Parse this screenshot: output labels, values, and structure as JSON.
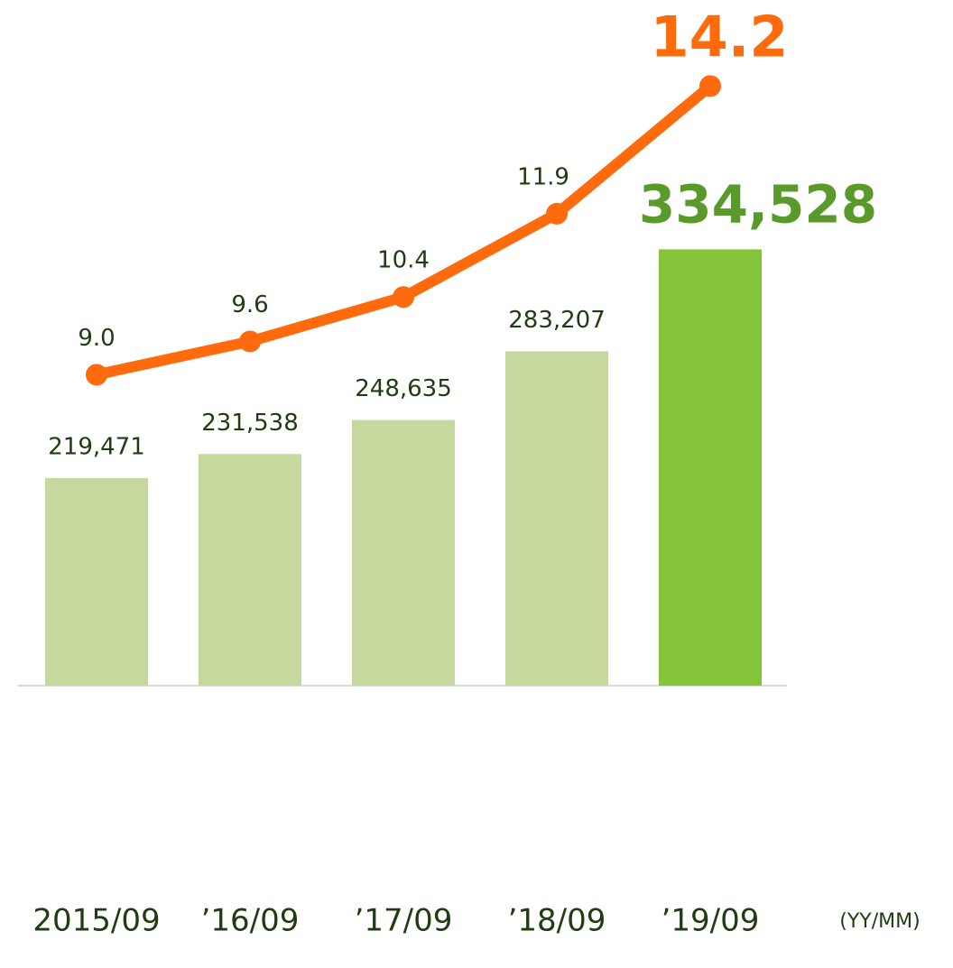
{
  "chart_data": {
    "type": "combo",
    "categories": [
      "2015/09",
      "’16/09",
      "’17/09",
      "’18/09",
      "’19/09"
    ],
    "x_label": "(YY/MM)",
    "ylim": [
      115000,
      460000
    ],
    "y2lim": [
      3.4,
      15.75
    ],
    "series": [
      {
        "type": "bar",
        "values": [
          219471,
          231538,
          248635,
          283207,
          334528
        ],
        "value_labels": [
          "219,471",
          "231,538",
          "248,635",
          "283,207",
          "334,528"
        ],
        "colors": [
          "#c5d89e",
          "#c5d89e",
          "#c5d89e",
          "#c5d89e",
          "#84c43b"
        ]
      },
      {
        "type": "line",
        "axis": "y2",
        "color": "#ff6a0d",
        "values": [
          9.0,
          9.6,
          10.4,
          11.9,
          14.2
        ],
        "value_labels": [
          "9.0",
          "9.6",
          "10.4",
          "11.9",
          "14.2"
        ]
      }
    ],
    "highlight_colors": {
      "bar_label": "#5a9a2a",
      "line_label": "#ff6a0d"
    }
  }
}
